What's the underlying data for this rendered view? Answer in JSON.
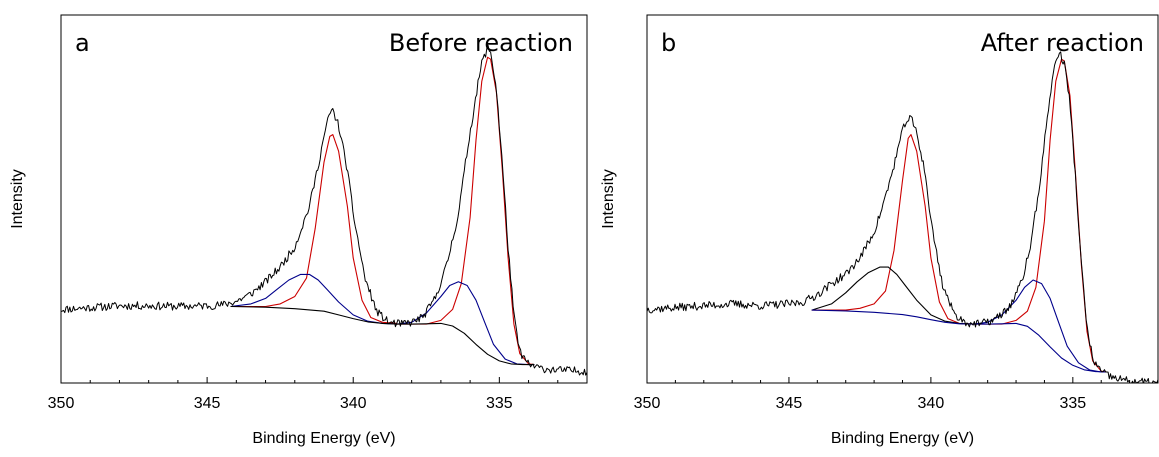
{
  "chart_data": [
    {
      "type": "line",
      "panel_letter": "a",
      "title": "Before reaction",
      "xlabel": "Binding Energy (eV)",
      "ylabel": "Intensity",
      "x_reversed": true,
      "xlim": [
        350,
        332
      ],
      "ylim": [
        0,
        100
      ],
      "x_ticks": [
        350,
        345,
        340,
        335
      ],
      "y_ticks_labeled": false,
      "grid": false,
      "legend": "none",
      "data_range": [
        344.2,
        333.8
      ],
      "colors": {
        "envelope": "#000000",
        "component_red": "#cc0000",
        "component_blue": "#00008b",
        "background": "#000000"
      },
      "measured": {
        "x": [
          350.0,
          349,
          348,
          347,
          346,
          345,
          344.5,
          344,
          343.5,
          343,
          342.5,
          342,
          341.5,
          341.2,
          341.0,
          340.8,
          340.7,
          340.5,
          340.2,
          340.0,
          339.6,
          339.2,
          338.8,
          338.4,
          338.0,
          337.6,
          337.2,
          336.8,
          336.4,
          336.1,
          335.8,
          335.6,
          335.4,
          335.3,
          335.1,
          334.9,
          334.7,
          334.5,
          334.3,
          334.0,
          333.6,
          333.0,
          332.0
        ],
        "y": [
          20.0,
          20.5,
          21.0,
          21.0,
          20.8,
          21.0,
          21.2,
          22.2,
          24.2,
          27.5,
          31.5,
          37.0,
          48.0,
          59.0,
          67.0,
          73.5,
          74.0,
          70.0,
          58.0,
          46.0,
          28.5,
          19.5,
          16.5,
          16.0,
          16.5,
          18.0,
          23.0,
          32.0,
          46.0,
          63.0,
          78.0,
          87.0,
          91.0,
          90.0,
          80.0,
          60.0,
          37.0,
          18.0,
          8.5,
          5.0,
          4.0,
          3.5,
          3.2
        ]
      },
      "components": [
        {
          "color": "red",
          "x": [
            344.2,
            343,
            342.5,
            342,
            341.6,
            341.3,
            341.0,
            340.8,
            340.7,
            340.5,
            340.2,
            340.0,
            339.7,
            339.4,
            339.0,
            338.5
          ],
          "y": [
            20.8,
            20.8,
            21.5,
            23.5,
            28.5,
            42.0,
            60.0,
            67.0,
            67.5,
            63.0,
            48.0,
            34.0,
            22.5,
            17.8,
            16.5,
            16.2
          ]
        },
        {
          "color": "red",
          "x": [
            338.5,
            337.5,
            337.0,
            336.6,
            336.3,
            336.0,
            335.8,
            335.6,
            335.4,
            335.3,
            335.1,
            334.9,
            334.7,
            334.5,
            334.3,
            334.0,
            333.8
          ],
          "y": [
            16.0,
            16.0,
            17.0,
            20.0,
            27.0,
            45.0,
            66.0,
            82.0,
            88.5,
            88.0,
            79.0,
            58.0,
            34.0,
            16.0,
            8.0,
            5.2,
            5.0
          ]
        },
        {
          "color": "blue",
          "x": [
            344.2,
            343.5,
            343.0,
            342.6,
            342.2,
            341.8,
            341.5,
            341.2,
            340.9,
            340.5,
            340.0,
            339.5,
            339.0,
            338.5
          ],
          "y": [
            20.8,
            21.5,
            23.0,
            25.5,
            28.0,
            29.5,
            29.5,
            28.0,
            25.5,
            22.0,
            18.5,
            16.8,
            16.2,
            16.0
          ]
        },
        {
          "color": "blue",
          "x": [
            338.5,
            338.0,
            337.5,
            337.0,
            336.7,
            336.4,
            336.1,
            335.8,
            335.5,
            335.2,
            334.8,
            334.4,
            334.0,
            333.8
          ],
          "y": [
            16.0,
            16.5,
            19.0,
            23.5,
            26.5,
            27.5,
            26.5,
            22.5,
            16.5,
            10.5,
            6.5,
            5.2,
            5.0,
            5.0
          ]
        },
        {
          "color": "background",
          "x": [
            344.2,
            343,
            342,
            341,
            340.5,
            340,
            339.5,
            339,
            338.5,
            338,
            337.5,
            337,
            336.6,
            336.2,
            335.8,
            335.4,
            335.0,
            334.6,
            334.2,
            333.8
          ],
          "y": [
            20.8,
            20.6,
            20.2,
            19.5,
            18.5,
            17.5,
            16.6,
            16.2,
            16.0,
            16.0,
            16.1,
            16.2,
            15.5,
            13.5,
            10.5,
            7.8,
            6.0,
            5.2,
            5.0,
            5.0
          ]
        }
      ]
    },
    {
      "type": "line",
      "panel_letter": "b",
      "title": "After reaction",
      "xlabel": "Binding Energy (eV)",
      "ylabel": "Intensity",
      "x_reversed": true,
      "xlim": [
        350,
        332
      ],
      "ylim": [
        0,
        100
      ],
      "x_ticks": [
        350,
        345,
        340,
        335
      ],
      "y_ticks_labeled": false,
      "grid": false,
      "legend": "none",
      "data_range": [
        344.2,
        333.8
      ],
      "colors": {
        "envelope": "#000000",
        "component_red": "#cc0000",
        "component_blue": "#00008b",
        "background": "#000000"
      },
      "measured": {
        "x": [
          350.0,
          349,
          348,
          347,
          346,
          345,
          344.5,
          344,
          343.5,
          343,
          342.5,
          342,
          341.7,
          341.4,
          341.1,
          340.9,
          340.7,
          340.5,
          340.2,
          340.0,
          339.6,
          339.2,
          338.8,
          338.4,
          338.0,
          337.6,
          337.2,
          336.8,
          336.5,
          336.2,
          335.9,
          335.7,
          335.5,
          335.3,
          335.1,
          334.9,
          334.7,
          334.5,
          334.3,
          334.0,
          333.6,
          333.0,
          332.0
        ],
        "y": [
          20.0,
          20.5,
          21.0,
          21.5,
          21.0,
          21.5,
          22.0,
          24.0,
          27.0,
          29.5,
          34.0,
          41.0,
          48.0,
          56.0,
          65.5,
          71.0,
          72.0,
          68.0,
          57.0,
          44.0,
          27.0,
          19.0,
          16.5,
          16.0,
          16.5,
          18.0,
          21.0,
          27.5,
          37.0,
          52.0,
          72.0,
          84.0,
          90.0,
          87.0,
          76.0,
          55.0,
          32.0,
          15.0,
          6.5,
          3.0,
          1.5,
          0.5,
          0.0
        ]
      },
      "components": [
        {
          "color": "red",
          "x": [
            344.2,
            343,
            342.5,
            342,
            341.6,
            341.3,
            341.0,
            340.8,
            340.7,
            340.5,
            340.2,
            340.0,
            339.7,
            339.4,
            339.0,
            338.5
          ],
          "y": [
            19.8,
            19.8,
            20.3,
            21.5,
            25.0,
            36.0,
            55.0,
            66.5,
            67.5,
            63.0,
            48.0,
            34.0,
            22.0,
            17.5,
            16.2,
            16.0
          ]
        },
        {
          "color": "red",
          "x": [
            338.5,
            337.5,
            337.0,
            336.6,
            336.3,
            336.0,
            335.8,
            335.6,
            335.4,
            335.3,
            335.1,
            334.9,
            334.7,
            334.5,
            334.3,
            334.0,
            333.8
          ],
          "y": [
            16.0,
            16.0,
            17.0,
            19.5,
            26.0,
            44.0,
            66.0,
            82.0,
            88.0,
            87.5,
            78.0,
            56.0,
            32.0,
            14.0,
            6.0,
            3.2,
            3.0
          ]
        },
        {
          "color": "black",
          "x": [
            344.2,
            343.5,
            343.0,
            342.6,
            342.2,
            341.8,
            341.5,
            341.2,
            340.9,
            340.5,
            340.0,
            339.5,
            339.0,
            338.5
          ],
          "y": [
            19.8,
            21.5,
            24.5,
            27.5,
            30.0,
            31.5,
            31.5,
            29.5,
            26.5,
            22.5,
            18.5,
            16.8,
            16.2,
            16.0
          ]
        },
        {
          "color": "blue",
          "x": [
            338.5,
            338.0,
            337.5,
            337.0,
            336.7,
            336.4,
            336.1,
            335.8,
            335.5,
            335.2,
            334.8,
            334.4,
            334.0,
            333.8
          ],
          "y": [
            16.0,
            16.5,
            18.5,
            22.5,
            26.0,
            28.0,
            27.0,
            23.0,
            16.5,
            10.0,
            5.5,
            3.5,
            3.0,
            3.0
          ]
        },
        {
          "color": "blue",
          "x": [
            344.2,
            343,
            342,
            341,
            340.5,
            340,
            339.5,
            339,
            338.5,
            338,
            337.5,
            337,
            336.6,
            336.2,
            335.8,
            335.4,
            335.0,
            334.6,
            334.2,
            333.8
          ],
          "y": [
            19.8,
            19.6,
            19.2,
            18.6,
            18.0,
            17.2,
            16.5,
            16.1,
            16.0,
            16.0,
            16.1,
            16.2,
            15.4,
            13.0,
            9.8,
            6.8,
            4.8,
            3.6,
            3.1,
            3.0
          ]
        }
      ]
    }
  ]
}
